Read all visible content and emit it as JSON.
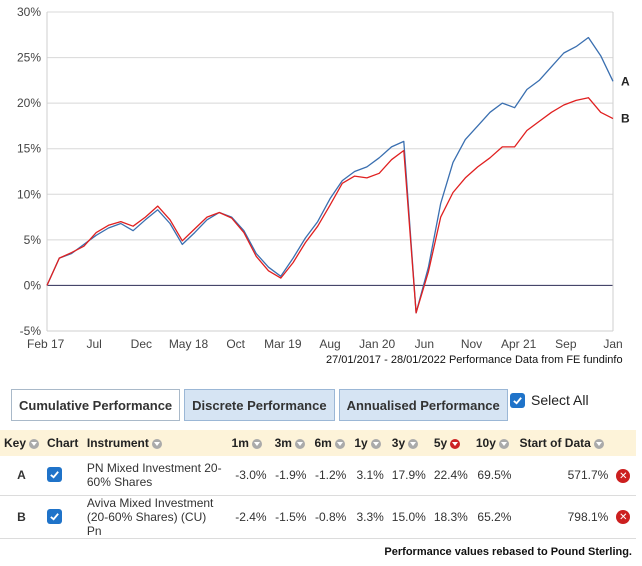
{
  "chart_data": {
    "type": "line",
    "y_ticks": [
      "30%",
      "25%",
      "20%",
      "15%",
      "10%",
      "5%",
      "0%",
      "-5%"
    ],
    "ylim": [
      -5,
      30
    ],
    "x_ticks": [
      "Feb 17",
      "Jul",
      "Dec",
      "May 18",
      "Oct",
      "Mar 19",
      "Aug",
      "Jan 20",
      "Jun",
      "Nov",
      "Apr 21",
      "Sep",
      "Jan"
    ],
    "grid": "horizontal",
    "series": [
      {
        "name": "A",
        "color": "#3a6fb0",
        "values": [
          0,
          3,
          3.5,
          4.5,
          5.5,
          6.3,
          6.8,
          6,
          7.2,
          8.3,
          6.8,
          4.5,
          5.8,
          7.2,
          8,
          7.5,
          6,
          3.5,
          2,
          1,
          3,
          5.2,
          7,
          9.5,
          11.5,
          12.5,
          13,
          14,
          15.2,
          15.8,
          -3,
          2,
          9,
          13.5,
          16,
          17.5,
          19,
          20,
          19.5,
          21.5,
          22.5,
          24,
          25.5,
          26.2,
          27.2,
          25.2,
          22.4
        ]
      },
      {
        "name": "B",
        "color": "#e02020",
        "values": [
          0,
          3,
          3.6,
          4.3,
          5.8,
          6.6,
          7,
          6.5,
          7.5,
          8.7,
          7.2,
          4.9,
          6.2,
          7.5,
          8,
          7.4,
          5.8,
          3.2,
          1.6,
          0.8,
          2.5,
          4.7,
          6.5,
          8.8,
          11.2,
          12,
          11.8,
          12.3,
          13.8,
          14.8,
          -3,
          1.5,
          7.5,
          10.2,
          11.8,
          13,
          14,
          15.2,
          15.2,
          17,
          18,
          19,
          19.8,
          20.3,
          20.6,
          19,
          18.3
        ]
      }
    ]
  },
  "chart_credit": "27/01/2017 - 28/01/2022 Performance Data from FE fundinfo",
  "tabs": [
    {
      "label": "Cumulative Performance",
      "active": true
    },
    {
      "label": "Discrete Performance",
      "active": false
    },
    {
      "label": "Annualised Performance",
      "active": false
    }
  ],
  "select_all": {
    "label": "Select All",
    "checked": true
  },
  "table": {
    "headers": {
      "key": "Key",
      "chart": "Chart",
      "instrument": "Instrument",
      "m1": "1m",
      "m3": "3m",
      "m6": "6m",
      "y1": "1y",
      "y3": "3y",
      "y5": "5y",
      "y10": "10y",
      "start": "Start of Data"
    },
    "rows": [
      {
        "key": "A",
        "instrument": "PN Mixed Investment 20-60% Shares",
        "m1": "-3.0%",
        "m3": "-1.9%",
        "m6": "-1.2%",
        "y1": "3.1%",
        "y3": "17.9%",
        "y5": "22.4%",
        "y10": "69.5%",
        "start": "571.7%"
      },
      {
        "key": "B",
        "instrument": "Aviva Mixed Investment (20-60% Shares) (CU) Pn",
        "m1": "-2.4%",
        "m3": "-1.5%",
        "m6": "-0.8%",
        "y1": "3.3%",
        "y3": "15.0%",
        "y5": "18.3%",
        "y10": "65.2%",
        "start": "798.1%"
      }
    ]
  },
  "footer": "Performance values rebased to Pound Sterling."
}
